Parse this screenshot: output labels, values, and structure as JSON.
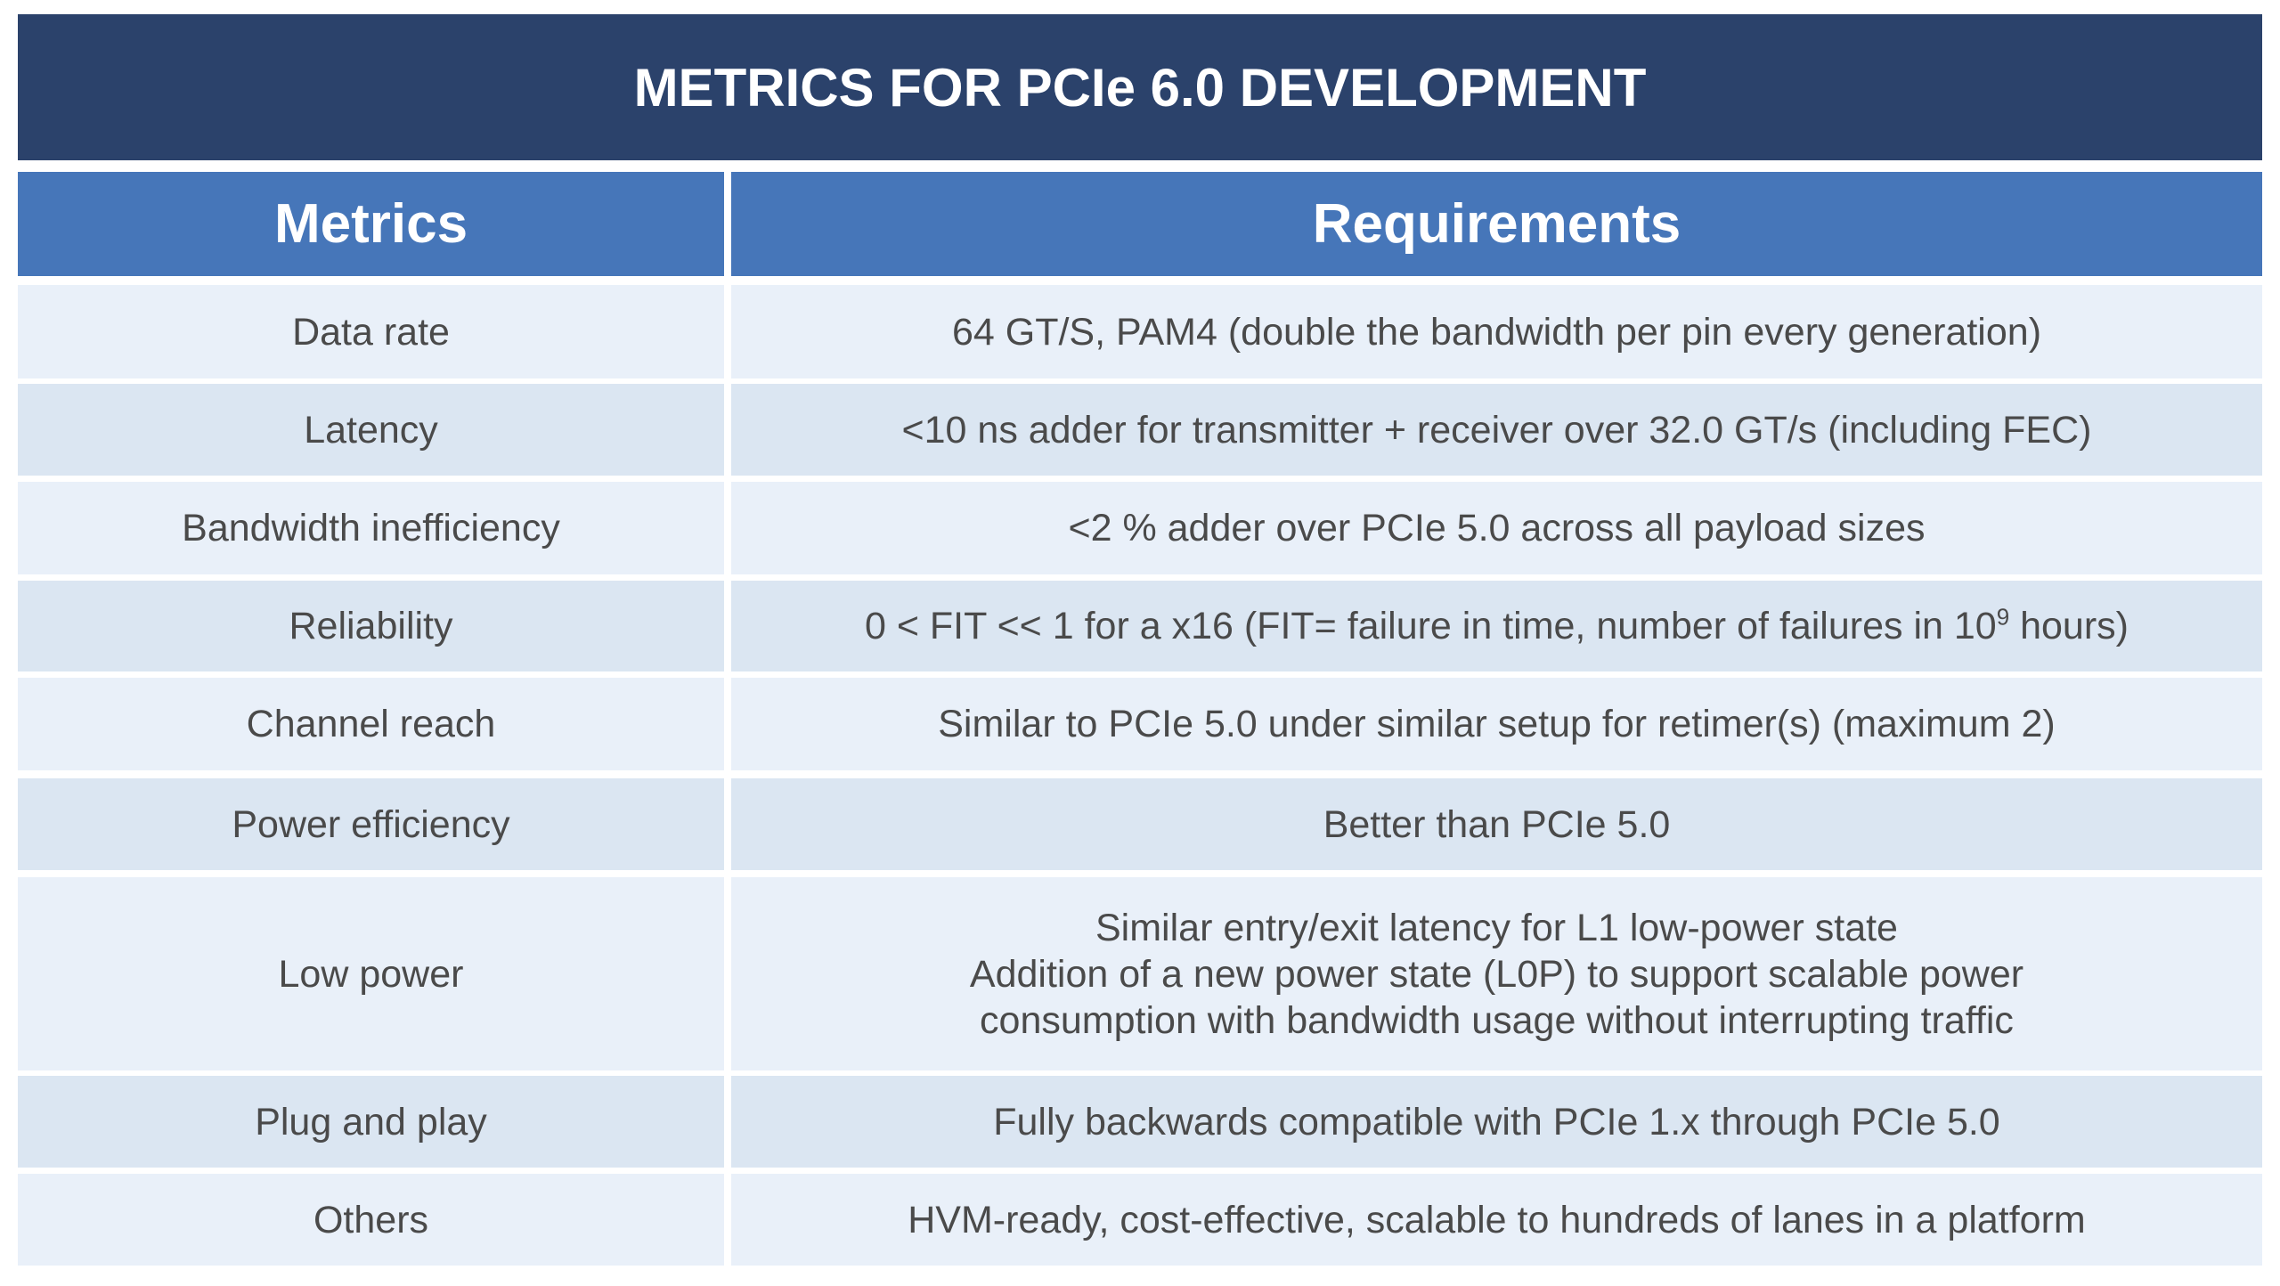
{
  "title": "METRICS FOR PCIe 6.0 DEVELOPMENT",
  "columns": [
    "Metrics",
    "Requirements"
  ],
  "rows": [
    {
      "metric": "Data rate",
      "requirement": "64 GT/S, PAM4 (double the bandwidth per pin every generation)"
    },
    {
      "metric": "Latency",
      "requirement": "<10 ns adder for transmitter + receiver over 32.0 GT/s (including FEC)"
    },
    {
      "metric": "Bandwidth inefficiency",
      "requirement": "<2 % adder over PCIe 5.0 across all payload sizes"
    },
    {
      "metric": "Reliability",
      "requirement": "0 < FIT << 1 for a x16 (FIT= failure in time, number of failures in 10",
      "requirement_sup": "9",
      "requirement_tail": " hours)"
    },
    {
      "metric": "Channel reach",
      "requirement": "Similar to PCIe 5.0 under similar setup for retimer(s) (maximum 2)"
    },
    {
      "metric": "Power efficiency",
      "requirement": "Better than PCIe 5.0"
    },
    {
      "metric": "Low power",
      "requirement": "Similar entry/exit latency for L1 low-power state\nAddition of a new power state (L0P) to support scalable power\nconsumption with bandwidth usage without interrupting traffic"
    },
    {
      "metric": "Plug and play",
      "requirement": "Fully backwards compatible with PCIe 1.x through PCIe 5.0"
    },
    {
      "metric": "Others",
      "requirement": "HVM-ready, cost-effective, scalable to hundreds of lanes in a platform"
    }
  ]
}
